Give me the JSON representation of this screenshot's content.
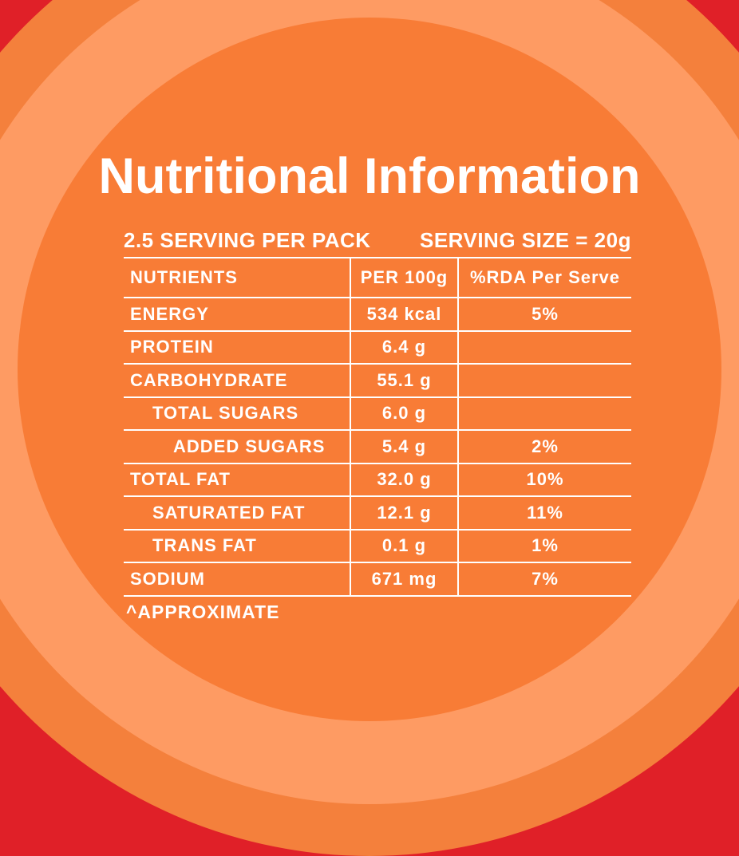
{
  "page": {
    "title": "Nutritional Information",
    "serving_per_pack": "2.5 SERVING PER PACK",
    "serving_size": "SERVING SIZE = 20g",
    "footnote": "^APPROXIMATE"
  },
  "colors": {
    "red": "#E02028",
    "ring-orange": "#F4803C",
    "peach": "#FE9B63",
    "center-orange": "#F87C36",
    "text": "#FFFFFF"
  },
  "table": {
    "headers": {
      "nutrients": "NUTRIENTS",
      "per_100g": "PER 100g",
      "rda": "%RDA Per Serve"
    },
    "rows": [
      {
        "nutrient": "ENERGY",
        "per_100g": "534 kcal",
        "rda": "5%"
      },
      {
        "nutrient": "PROTEIN",
        "per_100g": "6.4 g",
        "rda": ""
      },
      {
        "nutrient": "CARBOHYDRATE",
        "per_100g": "55.1 g",
        "rda": ""
      },
      {
        "nutrient": "TOTAL SUGARS",
        "per_100g": "6.0 g",
        "rda": ""
      },
      {
        "nutrient": "ADDED SUGARS",
        "per_100g": "5.4 g",
        "rda": "2%"
      },
      {
        "nutrient": "TOTAL FAT",
        "per_100g": "32.0 g",
        "rda": "10%"
      },
      {
        "nutrient": "SATURATED FAT",
        "per_100g": "12.1 g",
        "rda": "11%"
      },
      {
        "nutrient": "TRANS FAT",
        "per_100g": "0.1 g",
        "rda": "1%"
      },
      {
        "nutrient": "SODIUM",
        "per_100g": "671 mg",
        "rda": "7%"
      }
    ]
  }
}
